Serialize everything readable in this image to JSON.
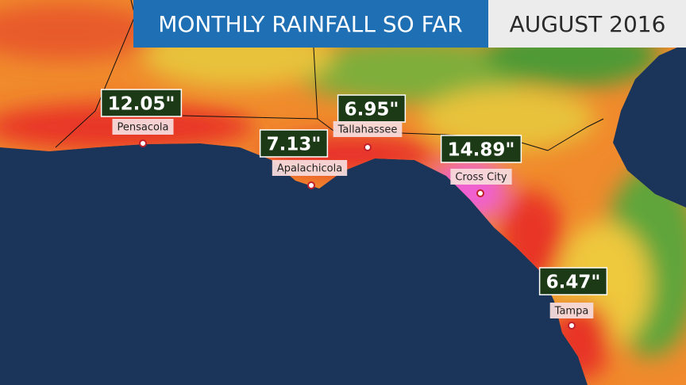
{
  "header": {
    "title": "MONTHLY RAINFALL SO FAR",
    "date": "AUGUST 2016"
  },
  "cities": [
    {
      "name": "Pensacola",
      "total": "12.05\""
    },
    {
      "name": "Tallahassee",
      "total": "6.95\""
    },
    {
      "name": "Apalachicola",
      "total": "7.13\""
    },
    {
      "name": "Cross City",
      "total": "14.89\""
    },
    {
      "name": "Tampa",
      "total": "6.47\""
    }
  ]
}
